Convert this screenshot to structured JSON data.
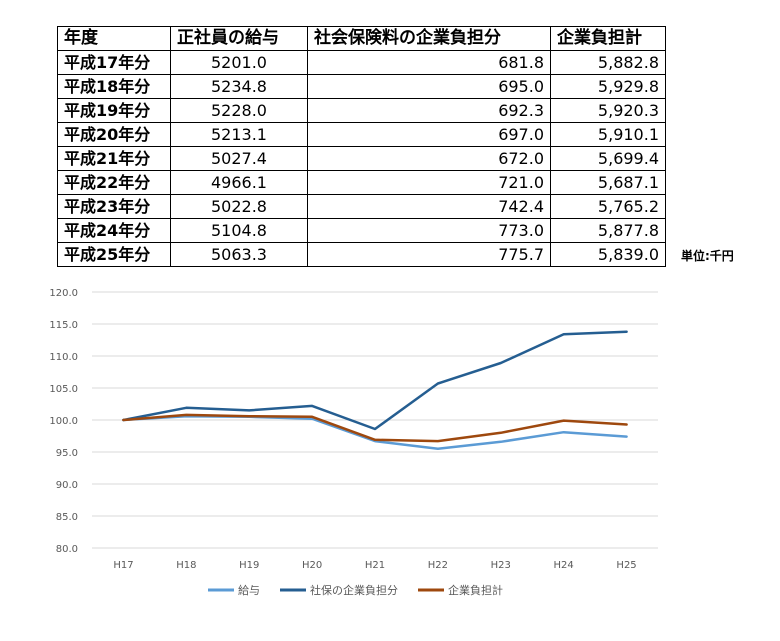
{
  "table": {
    "headers": [
      "年度",
      "正社員の給与",
      "社会保険料の企業負担分",
      "企業負担計"
    ],
    "rows": [
      [
        "平成17年分",
        "5201.0",
        "681.8",
        "5,882.8"
      ],
      [
        "平成18年分",
        "5234.8",
        "695.0",
        "5,929.8"
      ],
      [
        "平成19年分",
        "5228.0",
        "692.3",
        "5,920.3"
      ],
      [
        "平成20年分",
        "5213.1",
        "697.0",
        "5,910.1"
      ],
      [
        "平成21年分",
        "5027.4",
        "672.0",
        "5,699.4"
      ],
      [
        "平成22年分",
        "4966.1",
        "721.0",
        "5,687.1"
      ],
      [
        "平成23年分",
        "5022.8",
        "742.4",
        "5,765.2"
      ],
      [
        "平成24年分",
        "5104.8",
        "773.0",
        "5,877.8"
      ],
      [
        "平成25年分",
        "5063.3",
        "775.7",
        "5,839.0"
      ]
    ],
    "unit": "単位:千円"
  },
  "chart_data": {
    "type": "line",
    "categories": [
      "H17",
      "H18",
      "H19",
      "H20",
      "H21",
      "H22",
      "H23",
      "H24",
      "H25"
    ],
    "ylim": [
      80.0,
      120.0
    ],
    "yticks": [
      "80.0",
      "85.0",
      "90.0",
      "95.0",
      "100.0",
      "105.0",
      "110.0",
      "115.0",
      "120.0"
    ],
    "grid": true,
    "legend_position": "bottom",
    "series": [
      {
        "name": "給与",
        "color": "#5B9BD5",
        "values": [
          100.0,
          100.6,
          100.5,
          100.2,
          96.7,
          95.5,
          96.6,
          98.1,
          97.4
        ]
      },
      {
        "name": "社保の企業負担分",
        "color": "#255E91",
        "values": [
          100.0,
          101.9,
          101.5,
          102.2,
          98.6,
          105.7,
          108.9,
          113.4,
          113.8
        ]
      },
      {
        "name": "企業負担計",
        "color": "#9E480E",
        "values": [
          100.0,
          100.8,
          100.6,
          100.5,
          96.9,
          96.7,
          98.0,
          99.9,
          99.3
        ]
      }
    ]
  }
}
